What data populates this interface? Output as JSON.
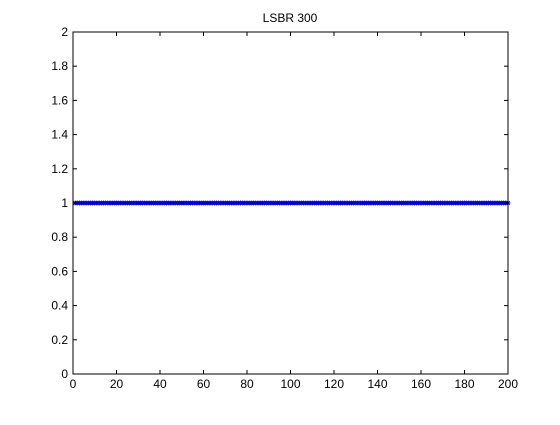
{
  "chart_data": {
    "type": "line",
    "title": "LSBR 300",
    "xlabel": "",
    "ylabel": "",
    "xlim": [
      0,
      200
    ],
    "ylim": [
      0,
      2
    ],
    "xticks": [
      0,
      20,
      40,
      60,
      80,
      100,
      120,
      140,
      160,
      180,
      200
    ],
    "yticks": [
      0,
      0.2,
      0.4,
      0.6,
      0.8,
      1,
      1.2,
      1.4,
      1.6,
      1.8,
      2
    ],
    "ytick_labels": [
      "0",
      "0.2",
      "0.4",
      "0.6",
      "0.8",
      "1",
      "1.2",
      "1.4",
      "1.6",
      "1.8",
      "2"
    ],
    "grid": false,
    "series": [
      {
        "color": "#0000cc",
        "marker": "asterisk",
        "x_start": 1,
        "x_end": 200,
        "constant_value": 1
      }
    ]
  }
}
